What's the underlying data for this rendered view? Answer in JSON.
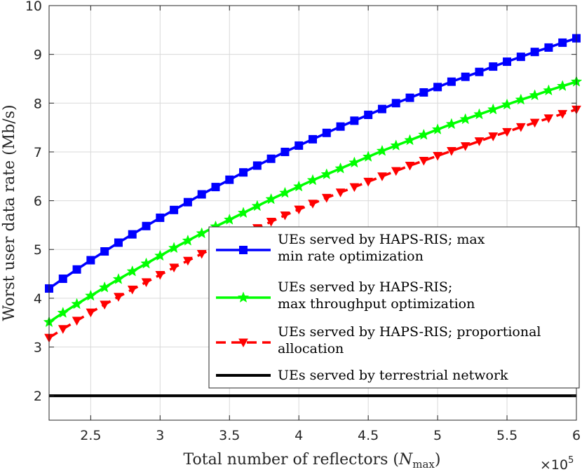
{
  "chart_data": {
    "type": "line",
    "xlabel": "Total number of reflectors (",
    "xlabel_symbol": "N",
    "xlabel_subscript": "max",
    "xlabel_close": ")",
    "ylabel": "Worst user data rate (Mb/s)",
    "x_multiplier": {
      "base": "×10",
      "exponent": "5"
    },
    "xlim": [
      2.2,
      6.0
    ],
    "ylim": [
      1.5,
      10
    ],
    "xticks": [
      2.5,
      3,
      3.5,
      4,
      4.5,
      5,
      5.5,
      6
    ],
    "xtick_labels": [
      "2.5",
      "3",
      "3.5",
      "4",
      "4.5",
      "5",
      "5.5",
      "6"
    ],
    "yticks": [
      2,
      3,
      4,
      5,
      6,
      7,
      8,
      9,
      10
    ],
    "ytick_labels": [
      "2",
      "3",
      "4",
      "5",
      "6",
      "7",
      "8",
      "9",
      "10"
    ],
    "grid": true,
    "legend_position": "bottom-right",
    "series": [
      {
        "name": "UEs served by HAPS-RIS; max min rate optimization",
        "legend_lines": [
          "UEs served by HAPS-RIS; max",
          "min rate optimization"
        ],
        "color": "#0000ff",
        "marker": "square",
        "line_style": "solid",
        "x": [
          2.2,
          2.3,
          2.4,
          2.5,
          2.6,
          2.7,
          2.8,
          2.9,
          3.0,
          3.1,
          3.2,
          3.3,
          3.4,
          3.5,
          3.6,
          3.7,
          3.8,
          3.9,
          4.0,
          4.1,
          4.2,
          4.3,
          4.4,
          4.5,
          4.6,
          4.7,
          4.8,
          4.9,
          5.0,
          5.1,
          5.2,
          5.3,
          5.4,
          5.5,
          5.6,
          5.7,
          5.8,
          5.9,
          6.0
        ],
        "y": [
          4.2,
          4.4,
          4.59,
          4.78,
          4.96,
          5.14,
          5.31,
          5.48,
          5.65,
          5.81,
          5.97,
          6.13,
          6.28,
          6.43,
          6.58,
          6.72,
          6.86,
          7.0,
          7.13,
          7.26,
          7.39,
          7.52,
          7.64,
          7.76,
          7.88,
          8.0,
          8.11,
          8.22,
          8.33,
          8.44,
          8.54,
          8.64,
          8.75,
          8.85,
          8.95,
          9.05,
          9.14,
          9.24,
          9.33
        ]
      },
      {
        "name": "UEs served by HAPS-RIS; max throughput optimization",
        "legend_lines": [
          "UEs served by HAPS-RIS;",
          "max throughput optimization"
        ],
        "color": "#00ff00",
        "marker": "star",
        "line_style": "solid",
        "x": [
          2.2,
          2.3,
          2.4,
          2.5,
          2.6,
          2.7,
          2.8,
          2.9,
          3.0,
          3.1,
          3.2,
          3.3,
          3.4,
          3.5,
          3.6,
          3.7,
          3.8,
          3.9,
          4.0,
          4.1,
          4.2,
          4.3,
          4.4,
          4.5,
          4.6,
          4.7,
          4.8,
          4.9,
          5.0,
          5.1,
          5.2,
          5.3,
          5.4,
          5.5,
          5.6,
          5.7,
          5.8,
          5.9,
          6.0
        ],
        "y": [
          3.51,
          3.7,
          3.88,
          4.05,
          4.22,
          4.39,
          4.55,
          4.71,
          4.87,
          5.03,
          5.18,
          5.33,
          5.47,
          5.61,
          5.75,
          5.89,
          6.03,
          6.16,
          6.29,
          6.42,
          6.54,
          6.66,
          6.78,
          6.9,
          7.02,
          7.13,
          7.24,
          7.35,
          7.46,
          7.57,
          7.67,
          7.77,
          7.87,
          7.97,
          8.07,
          8.16,
          8.26,
          8.35,
          8.44
        ]
      },
      {
        "name": "UEs served by HAPS-RIS; proportional allocation",
        "legend_lines": [
          "UEs served by HAPS-RIS; proportional",
          "allocation"
        ],
        "color": "#ff0000",
        "marker": "triangle-down",
        "line_style": "dashed",
        "x": [
          2.2,
          2.3,
          2.4,
          2.5,
          2.6,
          2.7,
          2.8,
          2.9,
          3.0,
          3.1,
          3.2,
          3.3,
          3.4,
          3.5,
          3.6,
          3.7,
          3.8,
          3.9,
          4.0,
          4.1,
          4.2,
          4.3,
          4.4,
          4.5,
          4.6,
          4.7,
          4.8,
          4.9,
          5.0,
          5.1,
          5.2,
          5.3,
          5.4,
          5.5,
          5.6,
          5.7,
          5.8,
          5.9,
          6.0
        ],
        "y": [
          3.19,
          3.37,
          3.54,
          3.71,
          3.87,
          4.03,
          4.18,
          4.33,
          4.48,
          4.63,
          4.77,
          4.91,
          5.05,
          5.18,
          5.31,
          5.44,
          5.57,
          5.7,
          5.82,
          5.94,
          6.06,
          6.17,
          6.28,
          6.39,
          6.5,
          6.61,
          6.72,
          6.82,
          6.92,
          7.02,
          7.12,
          7.22,
          7.32,
          7.41,
          7.51,
          7.6,
          7.69,
          7.78,
          7.87
        ]
      },
      {
        "name": "UEs served by terrestrial network",
        "legend_lines": [
          "UEs served by terrestrial network"
        ],
        "color": "#000000",
        "marker": "none",
        "line_style": "solid",
        "x": [
          2.2,
          6.0
        ],
        "y": [
          2.0,
          2.0
        ]
      }
    ]
  }
}
